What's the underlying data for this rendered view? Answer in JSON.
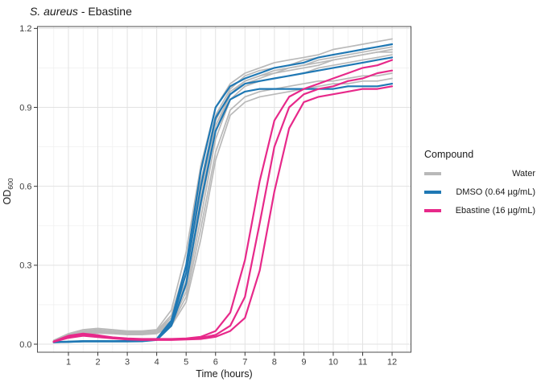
{
  "title": {
    "italic": "S. aureus",
    "rest": " - Ebastine"
  },
  "axes": {
    "x_label": "Time (hours)",
    "y_label_main": "OD",
    "y_label_sub": "600"
  },
  "legend": {
    "title": "Compound",
    "entries": [
      {
        "label": "Water",
        "color": "#b9b9b9"
      },
      {
        "label": "DMSO (0.64 µg/mL)",
        "color": "#1f78b4"
      },
      {
        "label": "Ebastine (16 µg/mL)",
        "color": "#e7298a"
      }
    ]
  },
  "chart_data": {
    "type": "line",
    "title": "S. aureus - Ebastine",
    "xlabel": "Time (hours)",
    "ylabel": "OD600",
    "xlim": [
      -0.05,
      12.65
    ],
    "ylim": [
      -0.03,
      1.215
    ],
    "grid": true,
    "legend_position": "right",
    "x_major_ticks": [
      1,
      2,
      3,
      4,
      5,
      6,
      7,
      8,
      9,
      10,
      11,
      12
    ],
    "y_major_ticks": [
      0.0,
      0.3,
      0.6,
      0.9,
      1.2
    ],
    "x_minor_ticks": [
      0.5,
      1.5,
      2.5,
      3.5,
      4.5,
      5.5,
      6.5,
      7.5,
      8.5,
      9.5,
      10.5,
      11.5,
      12.5
    ],
    "y_minor_ticks": [
      0.15,
      0.45,
      0.75,
      1.05
    ],
    "groups": {
      "Water": {
        "color": "#b9b9b9",
        "width": 1.7
      },
      "DMSO": {
        "color": "#1f78b4",
        "width": 2.2
      },
      "Ebastine": {
        "color": "#e7298a",
        "width": 2.2
      }
    },
    "x": [
      0.5,
      1,
      1.5,
      2,
      2.5,
      3,
      3.5,
      4,
      4.5,
      5,
      5.5,
      6,
      6.5,
      7,
      7.5,
      8,
      8.5,
      9,
      9.5,
      10,
      10.5,
      11,
      11.5,
      12
    ],
    "series": [
      {
        "name": "Water-1",
        "group": "Water",
        "values": [
          0.015,
          0.04,
          0.055,
          0.06,
          0.055,
          0.05,
          0.05,
          0.055,
          0.13,
          0.35,
          0.68,
          0.9,
          0.99,
          1.03,
          1.05,
          1.07,
          1.08,
          1.09,
          1.1,
          1.12,
          1.13,
          1.14,
          1.15,
          1.16
        ]
      },
      {
        "name": "Water-2",
        "group": "Water",
        "values": [
          0.012,
          0.035,
          0.05,
          0.055,
          0.05,
          0.046,
          0.046,
          0.05,
          0.11,
          0.3,
          0.62,
          0.87,
          0.97,
          1.02,
          1.04,
          1.05,
          1.06,
          1.08,
          1.09,
          1.1,
          1.11,
          1.12,
          1.13,
          1.14
        ]
      },
      {
        "name": "Water-3",
        "group": "Water",
        "values": [
          0.01,
          0.03,
          0.045,
          0.05,
          0.048,
          0.044,
          0.044,
          0.048,
          0.1,
          0.27,
          0.58,
          0.85,
          0.96,
          1.0,
          1.02,
          1.04,
          1.05,
          1.06,
          1.08,
          1.09,
          1.1,
          1.11,
          1.12,
          1.13
        ]
      },
      {
        "name": "Water-4",
        "group": "Water",
        "values": [
          0.012,
          0.032,
          0.046,
          0.05,
          0.047,
          0.043,
          0.043,
          0.046,
          0.085,
          0.22,
          0.52,
          0.81,
          0.95,
          0.99,
          1.01,
          1.03,
          1.04,
          1.05,
          1.06,
          1.08,
          1.09,
          1.1,
          1.11,
          1.12
        ]
      },
      {
        "name": "Water-5",
        "group": "Water",
        "values": [
          0.01,
          0.03,
          0.042,
          0.046,
          0.044,
          0.04,
          0.04,
          0.044,
          0.08,
          0.2,
          0.48,
          0.78,
          0.93,
          0.98,
          1.0,
          1.01,
          1.02,
          1.03,
          1.05,
          1.06,
          1.07,
          1.08,
          1.09,
          1.1
        ]
      },
      {
        "name": "Water-6",
        "group": "Water",
        "values": [
          0.013,
          0.034,
          0.047,
          0.051,
          0.048,
          0.044,
          0.044,
          0.047,
          0.09,
          0.24,
          0.55,
          0.83,
          0.95,
          1.0,
          1.02,
          1.03,
          1.05,
          1.06,
          1.07,
          1.08,
          1.09,
          1.1,
          1.11,
          1.11
        ]
      },
      {
        "name": "Water-7",
        "group": "Water",
        "values": [
          0.01,
          0.028,
          0.04,
          0.044,
          0.042,
          0.038,
          0.038,
          0.042,
          0.075,
          0.18,
          0.44,
          0.73,
          0.89,
          0.94,
          0.96,
          0.97,
          0.98,
          0.99,
          1.0,
          1.0,
          1.01,
          1.02,
          1.02,
          1.03
        ]
      },
      {
        "name": "Water-8",
        "group": "Water",
        "values": [
          0.009,
          0.026,
          0.038,
          0.042,
          0.04,
          0.036,
          0.036,
          0.04,
          0.07,
          0.16,
          0.4,
          0.7,
          0.87,
          0.92,
          0.94,
          0.95,
          0.96,
          0.97,
          0.98,
          0.99,
          0.99,
          1.0,
          1.0,
          1.01
        ]
      },
      {
        "name": "DMSO-1",
        "group": "DMSO",
        "values": [
          0.008,
          0.01,
          0.012,
          0.012,
          0.012,
          0.012,
          0.013,
          0.02,
          0.09,
          0.3,
          0.66,
          0.9,
          0.98,
          1.01,
          1.03,
          1.05,
          1.06,
          1.07,
          1.09,
          1.1,
          1.11,
          1.12,
          1.13,
          1.14
        ]
      },
      {
        "name": "DMSO-2",
        "group": "DMSO",
        "values": [
          0.007,
          0.009,
          0.011,
          0.011,
          0.011,
          0.011,
          0.012,
          0.018,
          0.08,
          0.27,
          0.6,
          0.86,
          0.95,
          0.99,
          1.0,
          1.01,
          1.02,
          1.03,
          1.04,
          1.05,
          1.06,
          1.07,
          1.08,
          1.09
        ]
      },
      {
        "name": "DMSO-3",
        "group": "DMSO",
        "values": [
          0.007,
          0.009,
          0.01,
          0.01,
          0.01,
          0.01,
          0.011,
          0.016,
          0.07,
          0.23,
          0.54,
          0.81,
          0.93,
          0.96,
          0.97,
          0.97,
          0.97,
          0.97,
          0.97,
          0.97,
          0.98,
          0.98,
          0.98,
          0.99
        ]
      },
      {
        "name": "Ebastine-1",
        "group": "Ebastine",
        "values": [
          0.01,
          0.032,
          0.04,
          0.034,
          0.026,
          0.022,
          0.02,
          0.02,
          0.02,
          0.022,
          0.028,
          0.05,
          0.12,
          0.32,
          0.62,
          0.85,
          0.94,
          0.97,
          0.99,
          1.01,
          1.03,
          1.05,
          1.06,
          1.08
        ]
      },
      {
        "name": "Ebastine-2",
        "group": "Ebastine",
        "values": [
          0.01,
          0.028,
          0.036,
          0.03,
          0.024,
          0.02,
          0.018,
          0.018,
          0.018,
          0.02,
          0.024,
          0.035,
          0.07,
          0.18,
          0.46,
          0.75,
          0.9,
          0.95,
          0.97,
          0.98,
          1.0,
          1.01,
          1.03,
          1.04
        ]
      },
      {
        "name": "Ebastine-3",
        "group": "Ebastine",
        "values": [
          0.009,
          0.024,
          0.032,
          0.027,
          0.022,
          0.018,
          0.016,
          0.016,
          0.016,
          0.018,
          0.02,
          0.028,
          0.05,
          0.1,
          0.28,
          0.58,
          0.82,
          0.92,
          0.94,
          0.95,
          0.96,
          0.97,
          0.97,
          0.98
        ]
      }
    ]
  }
}
